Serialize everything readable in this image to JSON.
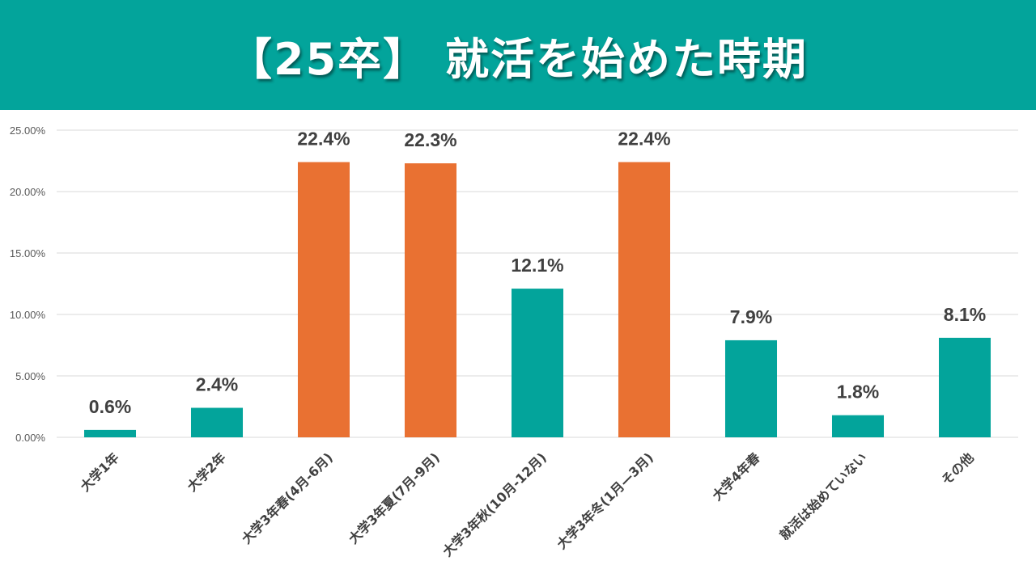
{
  "header": {
    "title": "【25卒】 就活を始めた時期"
  },
  "colors": {
    "header_bg": "#03a49b",
    "primary_bar": "#03a49b",
    "highlight_bar": "#e97132",
    "grid": "#d9d9d9"
  },
  "chart_data": {
    "type": "bar",
    "title": "【25卒】 就活を始めた時期",
    "xlabel": "",
    "ylabel": "",
    "ylim": [
      0,
      25
    ],
    "yticks": [
      0,
      5,
      10,
      15,
      20,
      25
    ],
    "ytick_labels": [
      "0.00%",
      "5.00%",
      "10.00%",
      "15.00%",
      "20.00%",
      "25.00%"
    ],
    "grid": true,
    "legend": "none",
    "categories": [
      "大学1年",
      "大学2年",
      "大学3年春(4月-6月)",
      "大学3年夏(7月-9月)",
      "大学3年秋(10月-12月)",
      "大学3年冬(1月—3月)",
      "大学4年春",
      "就活は始めていない",
      "その他"
    ],
    "values": [
      0.6,
      2.4,
      22.4,
      22.3,
      12.1,
      22.4,
      7.9,
      1.8,
      8.1
    ],
    "value_labels": [
      "0.6%",
      "2.4%",
      "22.4%",
      "22.3%",
      "12.1%",
      "22.4%",
      "7.9%",
      "1.8%",
      "8.1%"
    ],
    "highlighted": [
      false,
      false,
      true,
      true,
      false,
      true,
      false,
      false,
      false
    ]
  }
}
